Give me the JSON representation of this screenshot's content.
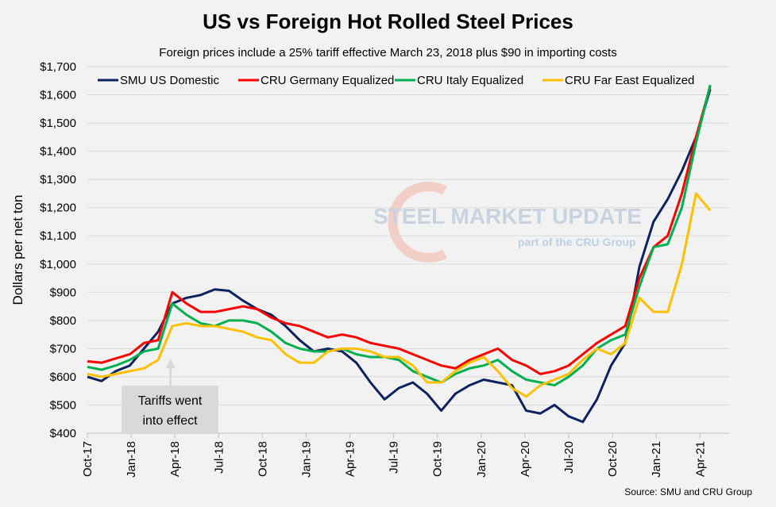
{
  "chart_data": {
    "type": "line",
    "title": "US vs Foreign Hot Rolled Steel Prices",
    "subtitle": "Foreign prices include a 25% tariff effective March 23, 2018 plus $90 in importing costs",
    "ylabel": "Dollars per net ton",
    "xlabel": "",
    "ylim": [
      400,
      1700
    ],
    "yticks": [
      "$400",
      "$500",
      "$600",
      "$700",
      "$800",
      "$900",
      "$1,000",
      "$1,100",
      "$1,200",
      "$1,300",
      "$1,400",
      "$1,500",
      "$1,600",
      "$1,700"
    ],
    "xticks": [
      "Oct-17",
      "Jan-18",
      "Apr-18",
      "Jul-18",
      "Oct-18",
      "Jan-19",
      "Apr-19",
      "Jul-19",
      "Oct-19",
      "Jan-20",
      "Apr-20",
      "Jul-20",
      "Oct-20",
      "Jan-21",
      "Apr-21"
    ],
    "x_unit": "months since Oct-17",
    "grid": true,
    "legend_position": "top",
    "series": [
      {
        "name": "SMU US Domestic",
        "color": "#0d2260",
        "values": [
          600,
          585,
          620,
          640,
          700,
          760,
          860,
          880,
          890,
          910,
          905,
          870,
          840,
          820,
          780,
          730,
          690,
          700,
          690,
          650,
          580,
          520,
          560,
          580,
          540,
          480,
          540,
          570,
          590,
          580,
          570,
          480,
          470,
          500,
          460,
          440,
          520,
          640,
          720,
          990,
          1150,
          1230,
          1330,
          1450,
          1620
        ]
      },
      {
        "name": "CRU Germany Equalized",
        "color": "#ff0000",
        "values": [
          655,
          650,
          665,
          680,
          720,
          730,
          900,
          860,
          830,
          830,
          840,
          850,
          840,
          810,
          790,
          780,
          760,
          740,
          750,
          740,
          720,
          710,
          700,
          680,
          660,
          640,
          630,
          660,
          680,
          700,
          660,
          640,
          610,
          620,
          640,
          680,
          720,
          750,
          780,
          950,
          1060,
          1100,
          1250,
          1450,
          1630
        ]
      },
      {
        "name": "CRU Italy Equalized",
        "color": "#00b050",
        "values": [
          635,
          625,
          640,
          660,
          690,
          700,
          860,
          820,
          790,
          780,
          800,
          800,
          790,
          760,
          720,
          700,
          690,
          690,
          700,
          680,
          670,
          670,
          660,
          620,
          600,
          580,
          610,
          630,
          640,
          660,
          620,
          590,
          580,
          570,
          600,
          640,
          700,
          730,
          750,
          920,
          1060,
          1070,
          1200,
          1430,
          1635
        ]
      },
      {
        "name": "CRU Far East Equalized",
        "color": "#ffc000",
        "values": [
          610,
          600,
          610,
          620,
          630,
          660,
          780,
          790,
          780,
          780,
          770,
          760,
          740,
          730,
          680,
          650,
          650,
          690,
          700,
          700,
          690,
          670,
          670,
          640,
          580,
          580,
          620,
          650,
          670,
          620,
          560,
          530,
          570,
          590,
          610,
          660,
          700,
          680,
          720,
          880,
          830,
          830,
          1000,
          1250,
          1190
        ]
      }
    ],
    "annotation": "Tariffs went into effect",
    "watermark": {
      "line1": "STEEL MARKET UPDATE",
      "line2": "part of the CRU Group"
    },
    "source": "Source: SMU and CRU Group"
  }
}
